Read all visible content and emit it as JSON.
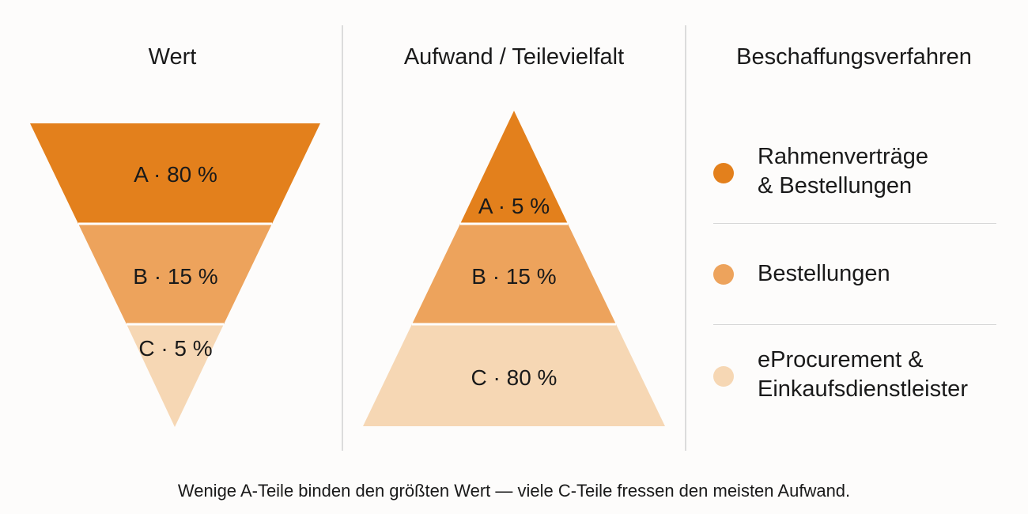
{
  "columns": {
    "value": {
      "title": "Wert"
    },
    "effort": {
      "title": "Aufwand / Teilevielfalt"
    },
    "procurement": {
      "title": "Beschaffungsverfahren"
    }
  },
  "colors": {
    "A": "#e3801c",
    "B": "#eda35c",
    "C": "#f6d7b4"
  },
  "value_funnel": [
    {
      "label": "A · 80 %",
      "class": "A",
      "share_percent": 80
    },
    {
      "label": "B · 15 %",
      "class": "B",
      "share_percent": 15
    },
    {
      "label": "C · 5 %",
      "class": "C",
      "share_percent": 5
    }
  ],
  "effort_pyramid": [
    {
      "label": "A · 5 %",
      "class": "A",
      "share_percent": 5
    },
    {
      "label": "B · 15 %",
      "class": "B",
      "share_percent": 15
    },
    {
      "label": "C · 80 %",
      "class": "C",
      "share_percent": 80
    }
  ],
  "legend": [
    {
      "class": "A",
      "line1": "Rahmenverträge",
      "line2": "& Bestellungen"
    },
    {
      "class": "B",
      "line1": "Bestellungen",
      "line2": ""
    },
    {
      "class": "C",
      "line1": "eProcurement &",
      "line2": "Einkaufsdienstleister"
    }
  ],
  "caption": "Wenige A-Teile binden den größten Wert — viele C-Teile fressen den meisten Aufwand."
}
